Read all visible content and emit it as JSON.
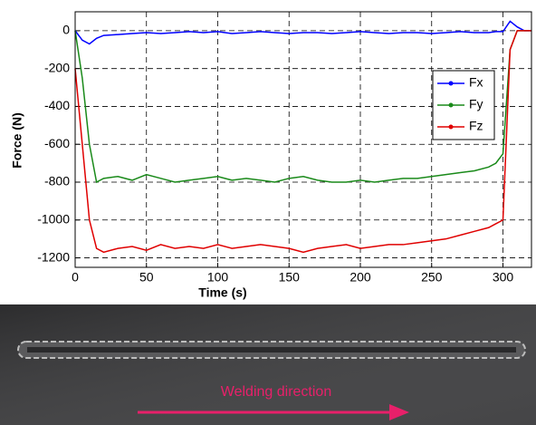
{
  "chart_data": {
    "type": "line",
    "xlabel": "Time (s)",
    "ylabel": "Force (N)",
    "x": [
      0,
      5,
      10,
      15,
      20,
      30,
      40,
      50,
      60,
      70,
      80,
      90,
      100,
      110,
      120,
      130,
      140,
      150,
      160,
      170,
      180,
      190,
      200,
      210,
      220,
      230,
      240,
      250,
      260,
      270,
      280,
      290,
      295,
      300,
      305,
      310,
      315,
      320
    ],
    "series": [
      {
        "name": "Fx",
        "color": "#0000ff",
        "values": [
          0,
          -50,
          -70,
          -40,
          -25,
          -20,
          -15,
          -10,
          -15,
          -10,
          -5,
          -10,
          -5,
          -15,
          -10,
          -5,
          -10,
          -15,
          -10,
          -10,
          -15,
          -10,
          -5,
          -10,
          -15,
          -10,
          -10,
          -15,
          -10,
          -5,
          -10,
          -10,
          -5,
          -5,
          50,
          20,
          0,
          0
        ]
      },
      {
        "name": "Fy",
        "color": "#1a8a1a",
        "values": [
          0,
          -250,
          -600,
          -800,
          -780,
          -770,
          -790,
          -760,
          -780,
          -800,
          -790,
          -780,
          -770,
          -790,
          -780,
          -790,
          -800,
          -780,
          -770,
          -790,
          -800,
          -800,
          -790,
          -800,
          -790,
          -780,
          -780,
          -770,
          -760,
          -750,
          -740,
          -720,
          -700,
          -650,
          -100,
          0,
          0,
          0
        ]
      },
      {
        "name": "Fz",
        "color": "#e00000",
        "values": [
          -200,
          -600,
          -1000,
          -1150,
          -1170,
          -1150,
          -1140,
          -1160,
          -1130,
          -1150,
          -1140,
          -1150,
          -1130,
          -1150,
          -1140,
          -1130,
          -1140,
          -1150,
          -1170,
          -1150,
          -1140,
          -1130,
          -1150,
          -1140,
          -1130,
          -1130,
          -1120,
          -1110,
          -1100,
          -1080,
          -1060,
          -1040,
          -1020,
          -1000,
          -100,
          0,
          0,
          0
        ]
      }
    ],
    "xlim": [
      0,
      320
    ],
    "xticks": [
      0,
      50,
      100,
      150,
      200,
      250,
      300
    ],
    "ylim": [
      -1250,
      100
    ],
    "yticks": [
      0,
      -200,
      -400,
      -600,
      -800,
      -1000,
      -1200
    ],
    "grid": true,
    "legend": "right"
  },
  "photo": {
    "caption": "Welding direction"
  }
}
